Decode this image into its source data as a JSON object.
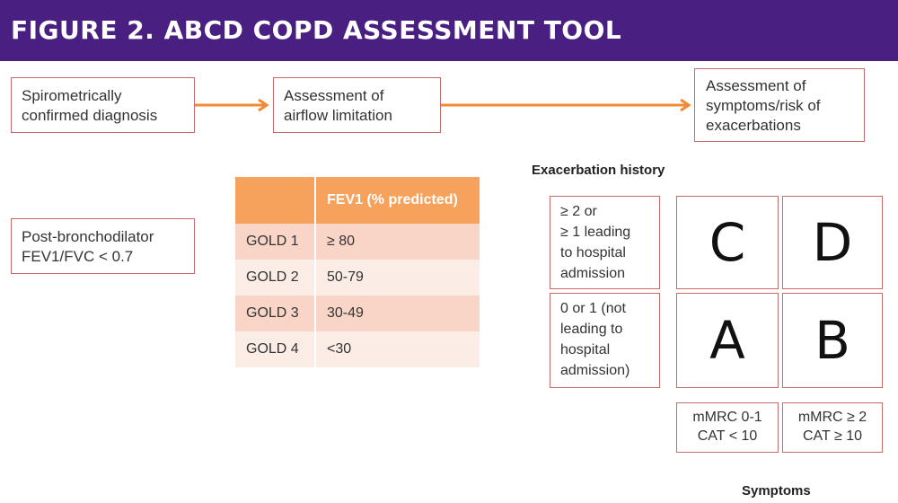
{
  "title": "FIGURE 2. ABCD COPD ASSESSMENT TOOL",
  "flow": [
    "Spirometrically\nconfirmed diagnosis",
    "Assessment of\nairflow limitation",
    "Assessment of\nsymptoms/risk of\nexacerbations"
  ],
  "post_bronchodilator": "Post-bronchodilator\nFEV1/FVC < 0.7",
  "fev_table": {
    "header": "FEV1 (% predicted)",
    "rows": [
      {
        "grade": "GOLD 1",
        "value": "≥ 80"
      },
      {
        "grade": "GOLD 2",
        "value": "50-79"
      },
      {
        "grade": "GOLD 3",
        "value": "30-49"
      },
      {
        "grade": "GOLD 4",
        "value": "<30"
      }
    ]
  },
  "exacerbation_history_label": "Exacerbation history",
  "exacerbation_rows": [
    "≥ 2 or\n≥ 1 leading\nto hospital\nadmission",
    "0 or 1 (not\nleading to\nhospital\nadmission)"
  ],
  "groups": {
    "top_left": "C",
    "top_right": "D",
    "bottom_left": "A",
    "bottom_right": "B"
  },
  "symptom_columns": [
    "mMRC 0-1\nCAT < 10",
    "mMRC ≥ 2\nCAT ≥ 10"
  ],
  "symptoms_label": "Symptoms",
  "colors": {
    "banner": "#4a1f82",
    "arrow": "#f08a35",
    "border": "#c96a6a",
    "table_header": "#f6a25c"
  }
}
